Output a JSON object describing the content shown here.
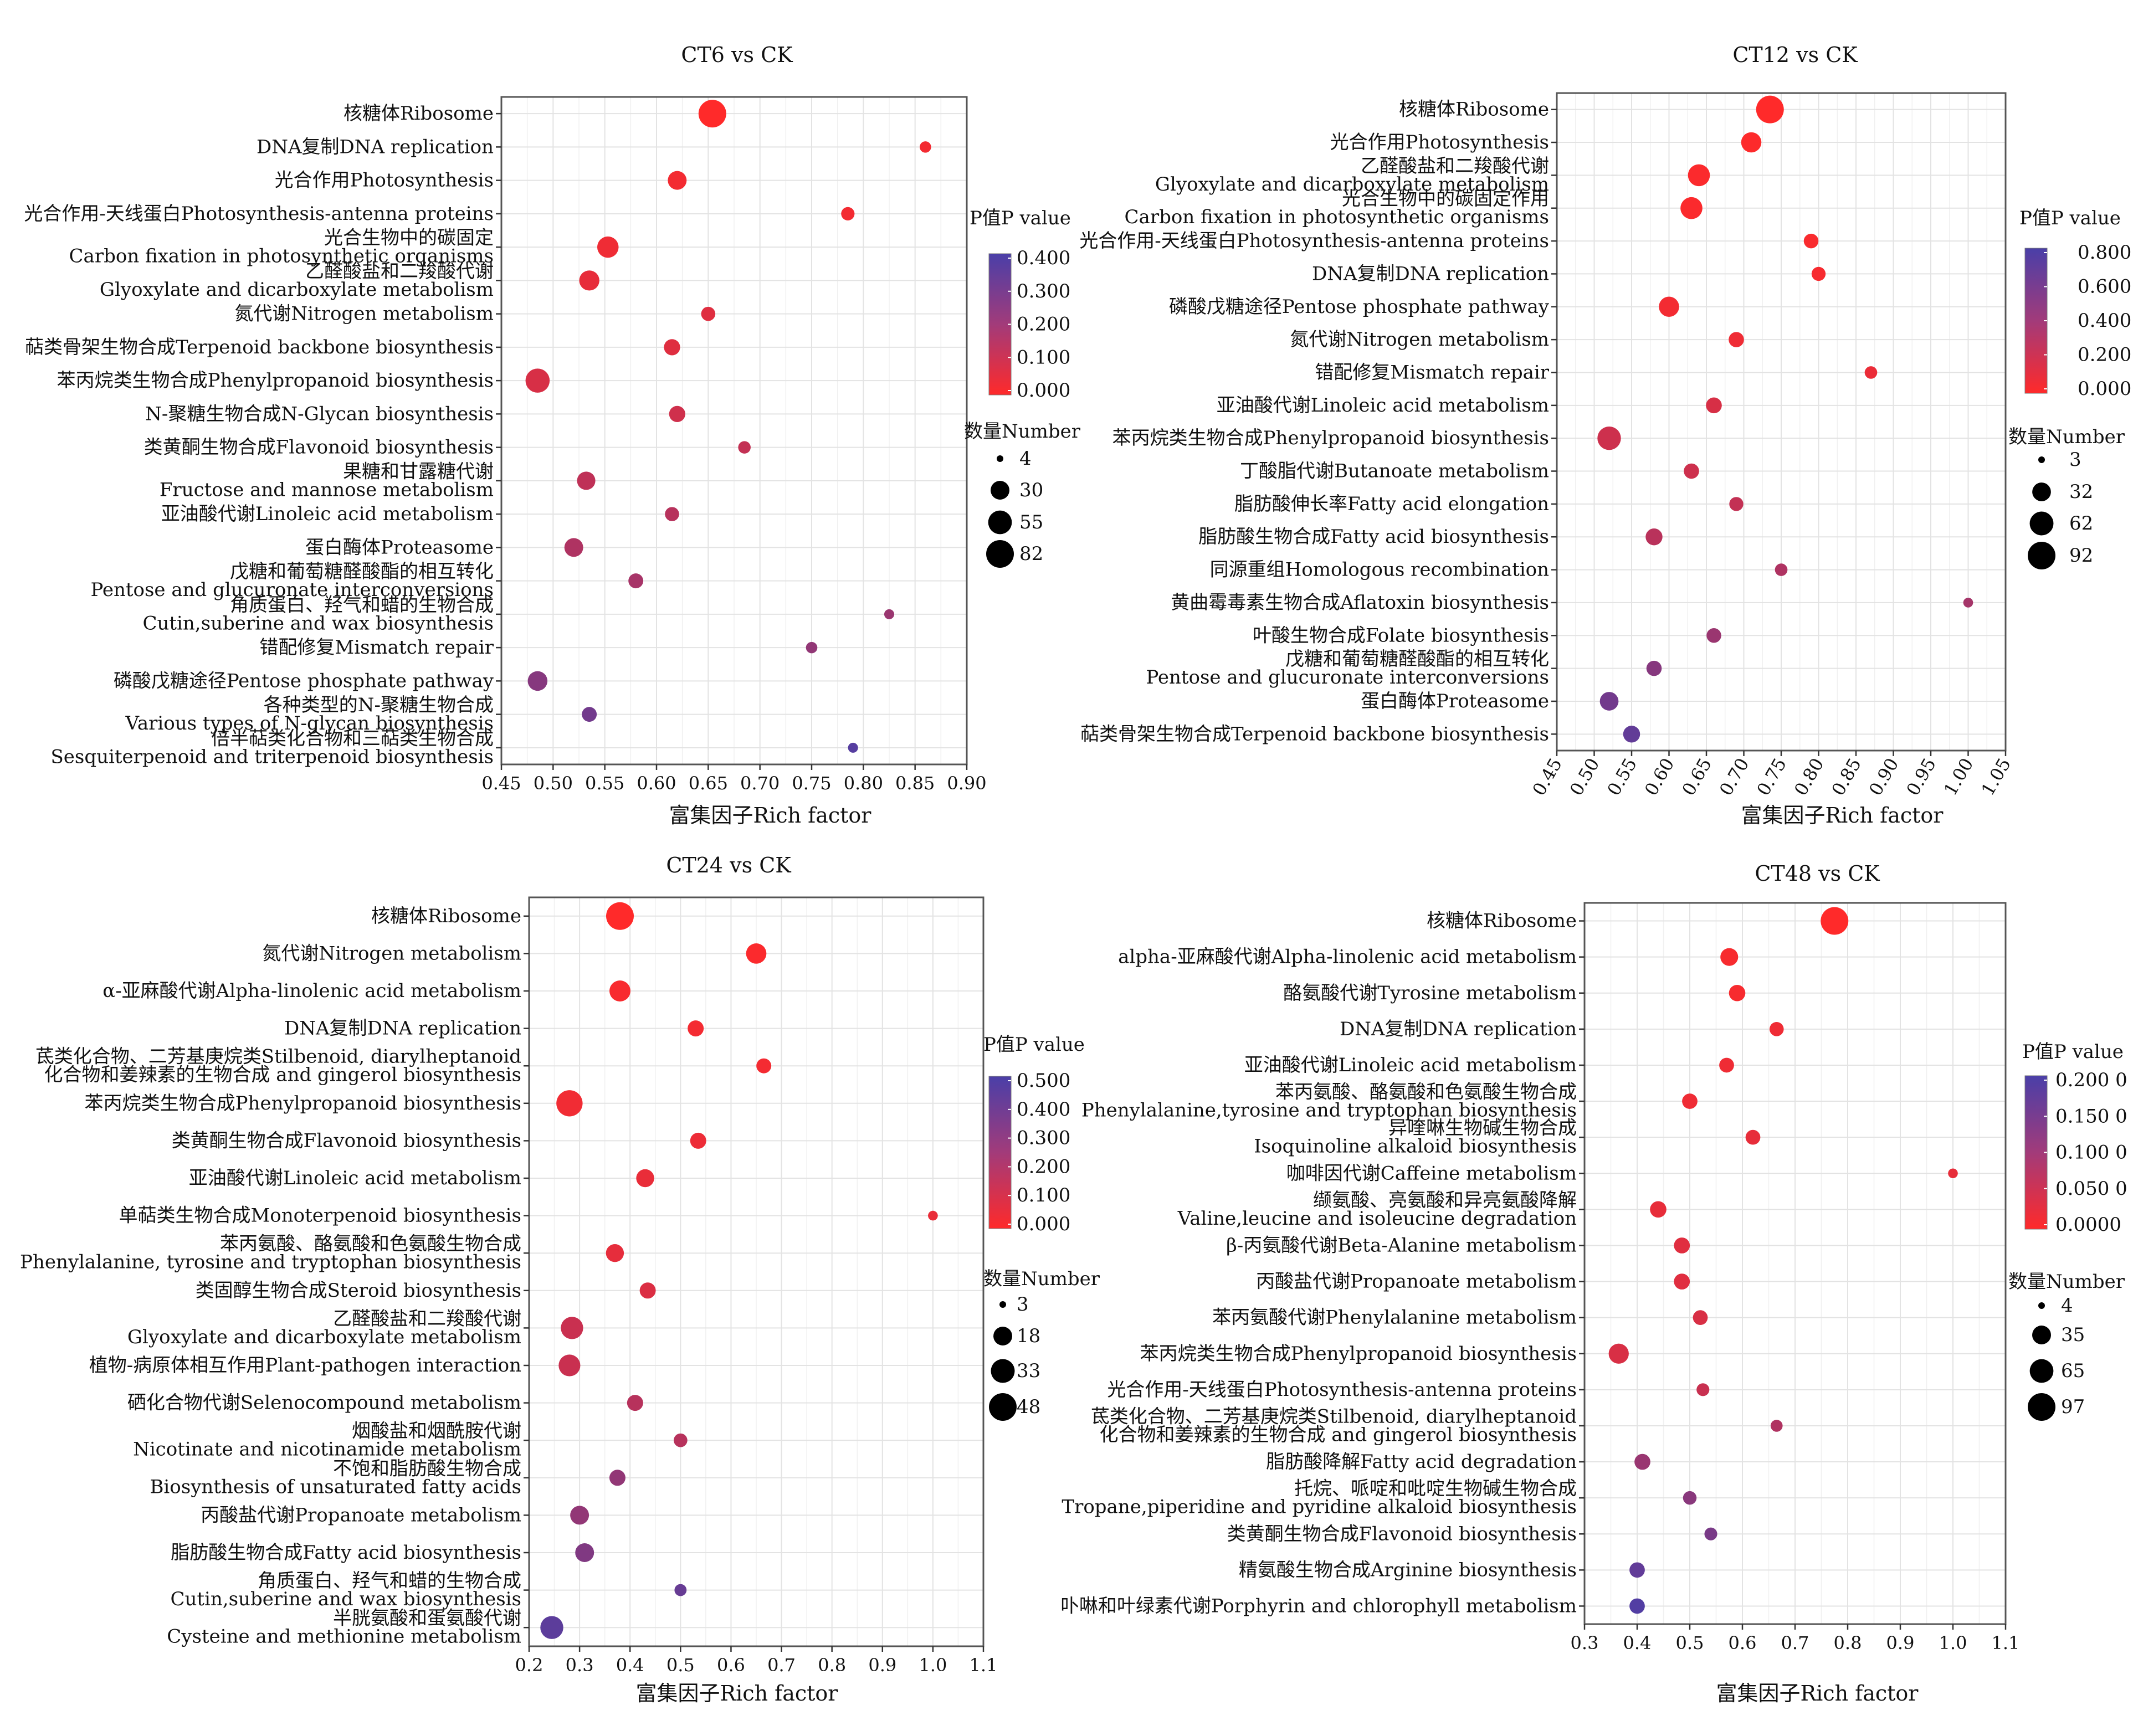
{
  "colors": {
    "low": "#ff2a2a",
    "high": "#4a3fa8"
  },
  "chart_data": [
    {
      "type": "scatter",
      "title": "CT6 vs CK",
      "xlabel": "富集因子Rich factor",
      "xlim": [
        0.45,
        0.9
      ],
      "xticks": [
        "0.45",
        "0.50",
        "0.55",
        "0.60",
        "0.65",
        "0.70",
        "0.75",
        "0.80",
        "0.85",
        "0.90"
      ],
      "pvalue_title": "P值P value",
      "pvalue_ticks": [
        "0.400",
        "0.300",
        "0.200",
        "0.100",
        "0.000"
      ],
      "pvalue_range": [
        0,
        0.45
      ],
      "number_title": "数量Number",
      "number_ticks": [
        "4",
        "30",
        "55",
        "82"
      ],
      "number_values": [
        4,
        30,
        55,
        82
      ],
      "terms": [
        {
          "label": [
            "核糖体Ribosome"
          ],
          "x": 0.654,
          "count": 82,
          "p": 0.0
        },
        {
          "label": [
            "DNA复制DNA replication"
          ],
          "x": 0.86,
          "count": 8,
          "p": 0.03
        },
        {
          "label": [
            "光合作用Photosynthesis"
          ],
          "x": 0.62,
          "count": 30,
          "p": 0.03
        },
        {
          "label": [
            "光合作用-天线蛋白Photosynthesis-antenna proteins"
          ],
          "x": 0.785,
          "count": 12,
          "p": 0.03
        },
        {
          "label": [
            "光合生物中的碳固定",
            "Carbon fixation in photosynthetic organisms"
          ],
          "x": 0.553,
          "count": 42,
          "p": 0.04
        },
        {
          "label": [
            "乙醛酸盐和二羧酸代谢",
            "Glyoxylate and dicarboxylate metabolism"
          ],
          "x": 0.535,
          "count": 36,
          "p": 0.06
        },
        {
          "label": [
            "氮代谢Nitrogen metabolism"
          ],
          "x": 0.65,
          "count": 14,
          "p": 0.08
        },
        {
          "label": [
            "萜类骨架生物合成Terpenoid backbone biosynthesis"
          ],
          "x": 0.615,
          "count": 20,
          "p": 0.08
        },
        {
          "label": [
            "苯丙烷类生物合成Phenylpropanoid biosynthesis"
          ],
          "x": 0.485,
          "count": 58,
          "p": 0.1
        },
        {
          "label": [
            "N-聚糖生物合成N-Glycan biosynthesis"
          ],
          "x": 0.62,
          "count": 20,
          "p": 0.12
        },
        {
          "label": [
            "类黄酮生物合成Flavonoid biosynthesis"
          ],
          "x": 0.685,
          "count": 10,
          "p": 0.15
        },
        {
          "label": [
            "果糖和甘露糖代谢",
            "Fructose and mannose metabolism"
          ],
          "x": 0.532,
          "count": 28,
          "p": 0.16
        },
        {
          "label": [
            "亚油酸代谢Linoleic acid metabolism"
          ],
          "x": 0.615,
          "count": 14,
          "p": 0.18
        },
        {
          "label": [
            "蛋白酶体Proteasome"
          ],
          "x": 0.52,
          "count": 30,
          "p": 0.2
        },
        {
          "label": [
            "戊糖和葡萄糖醛酸酯的相互转化",
            "Pentose and glucuronate interconversions"
          ],
          "x": 0.58,
          "count": 16,
          "p": 0.22
        },
        {
          "label": [
            "角质蛋白、羟气和蜡的生物合成",
            "Cutin,suberine and wax biosynthesis"
          ],
          "x": 0.825,
          "count": 6,
          "p": 0.25
        },
        {
          "label": [
            "错配修复Mismatch repair"
          ],
          "x": 0.75,
          "count": 8,
          "p": 0.27
        },
        {
          "label": [
            "磷酸戊糖途径Pentose phosphate pathway"
          ],
          "x": 0.485,
          "count": 34,
          "p": 0.3
        },
        {
          "label": [
            "各种类型的N-聚糖生物合成",
            "Various types of N-glycan biosynthesis"
          ],
          "x": 0.535,
          "count": 16,
          "p": 0.35
        },
        {
          "label": [
            "倍半萜类化合物和三萜类生物合成",
            "Sesquiterpenoid and triterpenoid biosynthesis"
          ],
          "x": 0.79,
          "count": 6,
          "p": 0.42
        }
      ]
    },
    {
      "type": "scatter",
      "title": "CT12 vs CK",
      "xlabel": "富集因子Rich factor",
      "xlim": [
        0.45,
        1.05
      ],
      "xticks": [
        "0.45",
        "0.50",
        "0.55",
        "0.60",
        "0.65",
        "0.70",
        "0.75",
        "0.80",
        "0.85",
        "0.90",
        "0.95",
        "1.00",
        "1.05"
      ],
      "pvalue_title": "P值P value",
      "pvalue_ticks": [
        "0.800",
        "0.600",
        "0.400",
        "0.200",
        "0.000"
      ],
      "pvalue_range": [
        0,
        0.9
      ],
      "number_title": "数量Number",
      "number_ticks": [
        "3",
        "32",
        "62",
        "92"
      ],
      "number_values": [
        3,
        32,
        62,
        92
      ],
      "terms": [
        {
          "label": [
            "核糖体Ribosome"
          ],
          "x": 0.735,
          "count": 92,
          "p": 0.0
        },
        {
          "label": [
            "光合作用Photosynthesis"
          ],
          "x": 0.71,
          "count": 40,
          "p": 0.01
        },
        {
          "label": [
            "乙醛酸盐和二羧酸代谢",
            "Glyoxylate and dicarboxylate metabolism"
          ],
          "x": 0.64,
          "count": 50,
          "p": 0.02
        },
        {
          "label": [
            "光合生物中的碳固定作用",
            "Carbon fixation in photosynthetic organisms"
          ],
          "x": 0.63,
          "count": 50,
          "p": 0.02
        },
        {
          "label": [
            "光合作用-天线蛋白Photosynthesis-antenna proteins"
          ],
          "x": 0.79,
          "count": 16,
          "p": 0.03
        },
        {
          "label": [
            "DNA复制DNA replication"
          ],
          "x": 0.8,
          "count": 14,
          "p": 0.04
        },
        {
          "label": [
            "磷酸戊糖途径Pentose phosphate pathway"
          ],
          "x": 0.6,
          "count": 40,
          "p": 0.06
        },
        {
          "label": [
            "氮代谢Nitrogen metabolism"
          ],
          "x": 0.69,
          "count": 18,
          "p": 0.08
        },
        {
          "label": [
            "错配修复Mismatch repair"
          ],
          "x": 0.87,
          "count": 10,
          "p": 0.1
        },
        {
          "label": [
            "亚油酸代谢Linoleic acid metabolism"
          ],
          "x": 0.66,
          "count": 20,
          "p": 0.2
        },
        {
          "label": [
            "苯丙烷类生物合成Phenylpropanoid biosynthesis"
          ],
          "x": 0.52,
          "count": 60,
          "p": 0.25
        },
        {
          "label": [
            "丁酸脂代谢Butanoate metabolism"
          ],
          "x": 0.63,
          "count": 18,
          "p": 0.25
        },
        {
          "label": [
            "脂肪酸伸长率Fatty acid elongation"
          ],
          "x": 0.69,
          "count": 14,
          "p": 0.3
        },
        {
          "label": [
            "脂肪酸生物合成Fatty acid biosynthesis"
          ],
          "x": 0.58,
          "count": 24,
          "p": 0.35
        },
        {
          "label": [
            "同源重组Homologous recombination"
          ],
          "x": 0.75,
          "count": 10,
          "p": 0.4
        },
        {
          "label": [
            "黄曲霉毒素生物合成Aflatoxin biosynthesis"
          ],
          "x": 1.0,
          "count": 5,
          "p": 0.45
        },
        {
          "label": [
            "叶酸生物合成Folate biosynthesis"
          ],
          "x": 0.66,
          "count": 16,
          "p": 0.5
        },
        {
          "label": [
            "戊糖和葡萄糖醛酸酯的相互转化",
            "Pentose and glucuronate interconversions"
          ],
          "x": 0.58,
          "count": 18,
          "p": 0.6
        },
        {
          "label": [
            "蛋白酶体Proteasome"
          ],
          "x": 0.52,
          "count": 32,
          "p": 0.7
        },
        {
          "label": [
            "萜类骨架生物合成Terpenoid backbone biosynthesis"
          ],
          "x": 0.55,
          "count": 24,
          "p": 0.78
        }
      ]
    },
    {
      "type": "scatter",
      "title": "CT24 vs CK",
      "xlabel": "富集因子Rich factor",
      "xlim": [
        0.2,
        1.1
      ],
      "xticks": [
        "0.2",
        "0.3",
        "0.4",
        "0.5",
        "0.6",
        "0.7",
        "0.8",
        "0.9",
        "1.0",
        "1.1"
      ],
      "pvalue_title": "P值P value",
      "pvalue_ticks": [
        "0.500",
        "0.400",
        "0.300",
        "0.200",
        "0.100",
        "0.000"
      ],
      "pvalue_range": [
        0,
        0.5
      ],
      "number_title": "数量Number",
      "number_ticks": [
        "3",
        "18",
        "33",
        "48"
      ],
      "number_values": [
        3,
        18,
        33,
        48
      ],
      "terms": [
        {
          "label": [
            "核糖体Ribosome"
          ],
          "x": 0.38,
          "count": 48,
          "p": 0.0
        },
        {
          "label": [
            "氮代谢Nitrogen metabolism"
          ],
          "x": 0.65,
          "count": 22,
          "p": 0.01
        },
        {
          "label": [
            "α-亚麻酸代谢Alpha-linolenic acid metabolism"
          ],
          "x": 0.38,
          "count": 24,
          "p": 0.02
        },
        {
          "label": [
            "DNA复制DNA replication"
          ],
          "x": 0.53,
          "count": 12,
          "p": 0.03
        },
        {
          "label": [
            "茋类化合物、二芳基庚烷类Stilbenoid, diarylheptanoid",
            "化合物和姜辣素的生物合成  and gingerol biosynthesis"
          ],
          "x": 0.665,
          "count": 10,
          "p": 0.03
        },
        {
          "label": [
            "苯丙烷类生物合成Phenylpropanoid biosynthesis"
          ],
          "x": 0.28,
          "count": 42,
          "p": 0.04
        },
        {
          "label": [
            "类黄酮生物合成Flavonoid biosynthesis"
          ],
          "x": 0.535,
          "count": 12,
          "p": 0.05
        },
        {
          "label": [
            "亚油酸代谢Linoleic acid metabolism"
          ],
          "x": 0.43,
          "count": 16,
          "p": 0.06
        },
        {
          "label": [
            "单萜类生物合成Monoterpenoid biosynthesis"
          ],
          "x": 1.0,
          "count": 4,
          "p": 0.06
        },
        {
          "label": [
            "苯丙氨酸、酪氨酸和色氨酸生物合成",
            "Phenylalanine, tyrosine and tryptophan biosynthesis"
          ],
          "x": 0.37,
          "count": 16,
          "p": 0.07
        },
        {
          "label": [
            "类固醇生物合成Steroid biosynthesis"
          ],
          "x": 0.435,
          "count": 12,
          "p": 0.1
        },
        {
          "label": [
            "乙醛酸盐和二羧酸代谢",
            "Glyoxylate and dicarboxylate metabolism"
          ],
          "x": 0.285,
          "count": 28,
          "p": 0.15
        },
        {
          "label": [
            "植物-病原体相互作用Plant-pathogen interaction"
          ],
          "x": 0.28,
          "count": 26,
          "p": 0.15
        },
        {
          "label": [
            "硒化合物代谢Selenocompound metabolism"
          ],
          "x": 0.41,
          "count": 12,
          "p": 0.2
        },
        {
          "label": [
            "烟酸盐和烟酰胺代谢",
            "Nicotinate and nicotinamide metabolism"
          ],
          "x": 0.5,
          "count": 8,
          "p": 0.2
        },
        {
          "label": [
            "不饱和脂肪酸生物合成",
            "Biosynthesis of unsaturated fatty acids"
          ],
          "x": 0.375,
          "count": 12,
          "p": 0.3
        },
        {
          "label": [
            "丙酸盐代谢Propanoate metabolism"
          ],
          "x": 0.3,
          "count": 18,
          "p": 0.3
        },
        {
          "label": [
            "脂肪酸生物合成Fatty acid biosynthesis"
          ],
          "x": 0.31,
          "count": 18,
          "p": 0.35
        },
        {
          "label": [
            "角质蛋白、羟气和蜡的生物合成",
            "Cutin,suberine and wax biosynthesis"
          ],
          "x": 0.5,
          "count": 6,
          "p": 0.42
        },
        {
          "label": [
            "半胱氨酸和蛋氨酸代谢",
            "Cysteine and methionine metabolism"
          ],
          "x": 0.245,
          "count": 30,
          "p": 0.45
        }
      ]
    },
    {
      "type": "scatter",
      "title": "CT48 vs CK",
      "xlabel": "富集因子Rich factor",
      "xlim": [
        0.3,
        1.1
      ],
      "xticks": [
        "0.3",
        "0.4",
        "0.5",
        "0.6",
        "0.7",
        "0.8",
        "0.9",
        "1.0",
        "1.1"
      ],
      "pvalue_title": "P值P value",
      "pvalue_ticks": [
        "0.200 0",
        "0.150 0",
        "0.100 0",
        "0.050 0",
        "0.0000"
      ],
      "pvalue_range": [
        0,
        0.23
      ],
      "number_title": "数量Number",
      "number_ticks": [
        "4",
        "35",
        "65",
        "97"
      ],
      "number_values": [
        4,
        35,
        65,
        97
      ],
      "terms": [
        {
          "label": [
            "核糖体Ribosome"
          ],
          "x": 0.775,
          "count": 97,
          "p": 0.0
        },
        {
          "label": [
            "alpha-亚麻酸代谢Alpha-linolenic acid metabolism"
          ],
          "x": 0.575,
          "count": 30,
          "p": 0.01
        },
        {
          "label": [
            "酪氨酸代谢Tyrosine metabolism"
          ],
          "x": 0.59,
          "count": 24,
          "p": 0.01
        },
        {
          "label": [
            "DNA复制DNA replication"
          ],
          "x": 0.665,
          "count": 16,
          "p": 0.02
        },
        {
          "label": [
            "亚油酸代谢Linoleic acid metabolism"
          ],
          "x": 0.57,
          "count": 18,
          "p": 0.02
        },
        {
          "label": [
            "苯丙氨酸、酪氨酸和色氨酸生物合成",
            "Phenylalanine,tyrosine and tryptophan biosynthesis"
          ],
          "x": 0.5,
          "count": 20,
          "p": 0.02
        },
        {
          "label": [
            "异喹啉生物碱生物合成",
            "Isoquinoline alkaloid biosynthesis"
          ],
          "x": 0.62,
          "count": 18,
          "p": 0.03
        },
        {
          "label": [
            "咖啡因代谢Caffeine metabolism"
          ],
          "x": 1.0,
          "count": 6,
          "p": 0.03
        },
        {
          "label": [
            "缬氨酸、亮氨酸和异亮氨酸降解",
            "Valine,leucine and isoleucine degradation"
          ],
          "x": 0.44,
          "count": 24,
          "p": 0.03
        },
        {
          "label": [
            "β-丙氨酸代谢Beta-Alanine metabolism"
          ],
          "x": 0.485,
          "count": 22,
          "p": 0.04
        },
        {
          "label": [
            "丙酸盐代谢Propanoate metabolism"
          ],
          "x": 0.485,
          "count": 22,
          "p": 0.04
        },
        {
          "label": [
            "苯丙氨酸代谢Phenylalanine metabolism"
          ],
          "x": 0.52,
          "count": 18,
          "p": 0.05
        },
        {
          "label": [
            "苯丙烷类生物合成Phenylpropanoid biosynthesis"
          ],
          "x": 0.365,
          "count": 42,
          "p": 0.05
        },
        {
          "label": [
            "光合作用-天线蛋白Photosynthesis-antenna proteins"
          ],
          "x": 0.525,
          "count": 12,
          "p": 0.07
        },
        {
          "label": [
            "茋类化合物、二芳基庚烷类Stilbenoid, diarylheptanoid",
            "化合物和姜辣素的生物合成  and gingerol biosynthesis"
          ],
          "x": 0.665,
          "count": 10,
          "p": 0.1
        },
        {
          "label": [
            "脂肪酸降解Fatty acid degradation"
          ],
          "x": 0.41,
          "count": 22,
          "p": 0.13
        },
        {
          "label": [
            "托烷、哌啶和吡啶生物碱生物合成",
            "Tropane,piperidine and pyridine alkaloid biosynthesis"
          ],
          "x": 0.5,
          "count": 14,
          "p": 0.15
        },
        {
          "label": [
            "类黄酮生物合成Flavonoid biosynthesis"
          ],
          "x": 0.54,
          "count": 12,
          "p": 0.17
        },
        {
          "label": [
            "精氨酸生物合成Arginine biosynthesis"
          ],
          "x": 0.4,
          "count": 20,
          "p": 0.2
        },
        {
          "label": [
            "卟啉和叶绿素代谢Porphyrin and chlorophyll metabolism"
          ],
          "x": 0.4,
          "count": 20,
          "p": 0.22
        }
      ]
    }
  ]
}
